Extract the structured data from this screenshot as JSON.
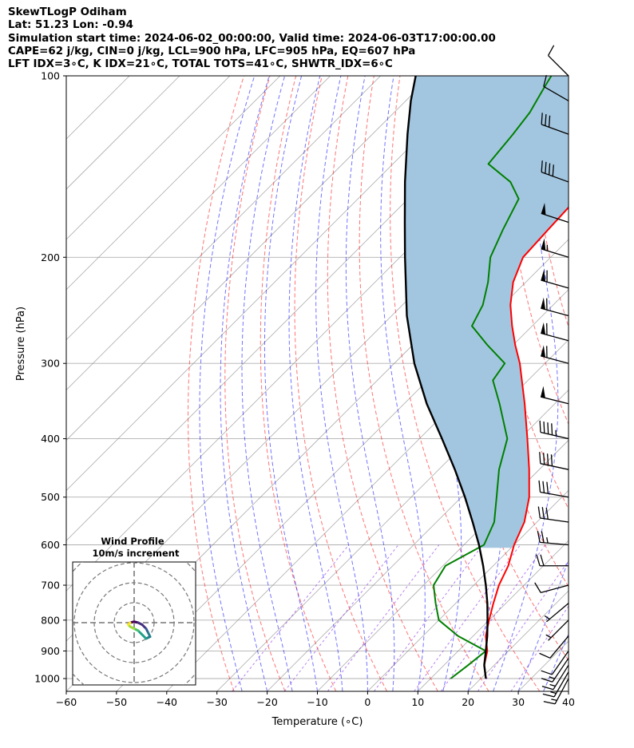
{
  "header": {
    "title_lines": [
      "SkewTLogP Odiham",
      "Lat: 51.23   Lon: -0.94",
      "Simulation start time: 2024-06-02_00:00:00, Valid time: 2024-06-03T17:00:00.00",
      "CAPE=62 j/kg, CIN=0 j/kg, LCL=900 hPa, LFC=905 hPa, EQ=607 hPa",
      "LFT IDX=3∘C, K IDX=21∘C, TOTAL TOTS=41∘C, SHWTR_IDX=6∘C"
    ]
  },
  "chart_data": {
    "type": "skewt-logp",
    "xlabel": "Temperature (∘C)",
    "ylabel": "Pressure (hPa)",
    "xlim": [
      -60,
      40
    ],
    "ylim": [
      1050,
      100
    ],
    "y_scale": "log",
    "grid": true,
    "x_ticks": [
      -60,
      -50,
      -40,
      -30,
      -20,
      -10,
      0,
      10,
      20,
      30,
      40
    ],
    "x_tick_labels": [
      "−60",
      "−50",
      "−40",
      "−30",
      "−20",
      "−10",
      "0",
      "10",
      "20",
      "30",
      "40"
    ],
    "y_ticks": [
      1000,
      900,
      800,
      700,
      600,
      500,
      400,
      300,
      200,
      100
    ],
    "y_tick_labels": [
      "1000",
      "900",
      "800",
      "700",
      "600",
      "500",
      "400",
      "300",
      "200",
      "100"
    ],
    "colors": {
      "temperature": "#ff0000",
      "dewpoint": "#008000",
      "parcel": "#000000",
      "cape_fill": "#a3c6e0",
      "dry_adiabat": "#ff0000",
      "moist_adiabat": "#0000ff",
      "mixing_ratio": "#8a2be2",
      "isotherm": "#888888"
    },
    "series": [
      {
        "key": "temperature",
        "pressure": [
          1000,
          950,
          900,
          850,
          800,
          750,
          700,
          650,
          600,
          550,
          500,
          450,
          400,
          350,
          300,
          280,
          260,
          240,
          220,
          200,
          180,
          160,
          140,
          125,
          115,
          105,
          100
        ],
        "values": [
          21,
          18,
          15.8,
          12.5,
          10,
          7.5,
          5,
          3,
          0,
          -2.5,
          -6.5,
          -12,
          -18.5,
          -26,
          -35,
          -39.5,
          -44,
          -48.5,
          -52.5,
          -55.5,
          -56,
          -56.5,
          -56.5,
          -57.5,
          -59,
          -61,
          -62
        ]
      },
      {
        "key": "dewpoint",
        "pressure": [
          1000,
          950,
          900,
          850,
          800,
          750,
          700,
          650,
          600,
          550,
          500,
          450,
          400,
          350,
          320,
          300,
          280,
          260,
          240,
          220,
          200,
          180,
          160,
          150,
          140,
          125,
          115,
          105,
          100
        ],
        "values": [
          14,
          14.8,
          15.5,
          7,
          0,
          -4,
          -8,
          -9.5,
          -6,
          -8.5,
          -13,
          -18,
          -22.5,
          -31,
          -37,
          -38,
          -45,
          -52,
          -54,
          -57.5,
          -62,
          -65,
          -68,
          -73,
          -81,
          -82,
          -83,
          -85,
          -86
        ]
      },
      {
        "key": "parcel",
        "pressure": [
          1000,
          950,
          900,
          850,
          800,
          750,
          700,
          650,
          600,
          550,
          500,
          450,
          400,
          350,
          300,
          250,
          200,
          175,
          150,
          125,
          110,
          100
        ],
        "values": [
          21,
          18,
          15.5,
          12.8,
          9.7,
          6.3,
          2.4,
          -2,
          -7,
          -12.8,
          -19.3,
          -26.8,
          -35.5,
          -45.5,
          -56,
          -67,
          -79,
          -86,
          -94,
          -103,
          -109,
          -113
        ]
      }
    ],
    "cape_shading": {
      "between": [
        "temperature",
        "parcel"
      ],
      "pressure_range": [
        607,
        100
      ]
    },
    "wind_barbs": {
      "pressure": [
        1000,
        975,
        950,
        925,
        900,
        850,
        800,
        750,
        700,
        650,
        600,
        550,
        500,
        450,
        400,
        350,
        300,
        275,
        250,
        225,
        200,
        175,
        150,
        125,
        110,
        100
      ],
      "speed_kt": [
        13,
        14,
        15,
        14,
        12,
        9,
        7,
        5,
        12,
        18,
        23,
        28,
        32,
        38,
        45,
        52,
        58,
        60,
        62,
        60,
        55,
        48,
        40,
        28,
        12,
        8
      ],
      "direction_deg": [
        208,
        210,
        212,
        214,
        215,
        220,
        225,
        230,
        255,
        270,
        275,
        278,
        280,
        282,
        283,
        284,
        285,
        285,
        285,
        286,
        287,
        288,
        290,
        290,
        300,
        315
      ]
    },
    "inset": {
      "title_lines": [
        "Wind Profile",
        "10m/s increment"
      ],
      "type": "hodograph",
      "ring_increment_ms": 10,
      "u": [
        -2,
        0,
        2,
        4,
        6,
        7,
        8,
        6,
        4,
        2,
        0,
        -2,
        -3,
        -2
      ],
      "v": [
        0,
        0.5,
        0,
        -1,
        -3,
        -5,
        -7,
        -8,
        -6,
        -4,
        -3,
        -2,
        -1,
        0
      ]
    }
  }
}
